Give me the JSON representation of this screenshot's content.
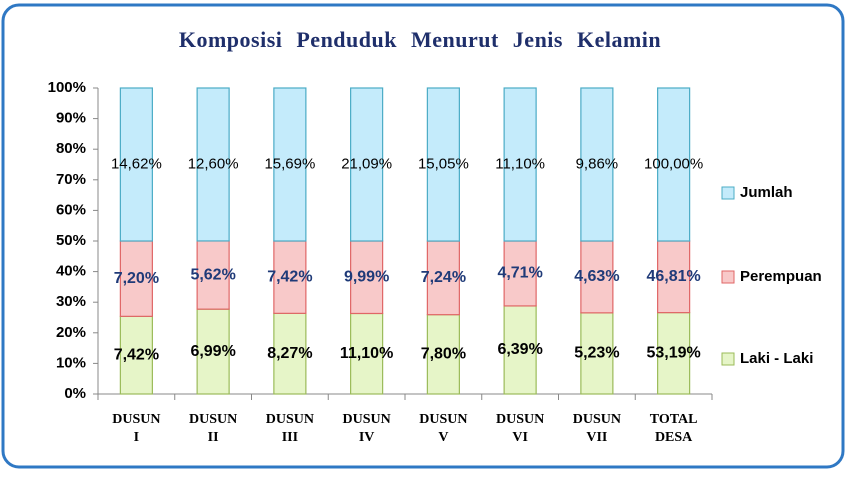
{
  "chart_data": {
    "type": "bar",
    "stacked": "percent",
    "title": "Komposisi Penduduk Menurut Jenis Kelamin",
    "categories": [
      "DUSUN I",
      "DUSUN II",
      "DUSUN III",
      "DUSUN IV",
      "DUSUN V",
      "DUSUN VI",
      "DUSUN VII",
      "TOTAL DESA"
    ],
    "series": [
      {
        "name": "Laki - Laki",
        "color": "#e6f5c8",
        "values": [
          7.42,
          6.99,
          8.27,
          11.1,
          7.8,
          6.39,
          5.23,
          53.19
        ],
        "value_labels": [
          "7,42%",
          "6,99%",
          "8,27%",
          "11,10%",
          "7,80%",
          "6,39%",
          "5,23%",
          "53,19%"
        ]
      },
      {
        "name": "Perempuan",
        "color": "#f8c9c9",
        "values": [
          7.2,
          5.62,
          7.42,
          9.99,
          7.24,
          4.71,
          4.63,
          46.81
        ],
        "value_labels": [
          "7,20%",
          "5,62%",
          "7,42%",
          "9,99%",
          "7,24%",
          "4,71%",
          "4,63%",
          "46,81%"
        ]
      },
      {
        "name": "Jumlah",
        "color": "#c4ebfb",
        "values": [
          14.62,
          12.6,
          15.69,
          21.09,
          15.05,
          11.1,
          9.86,
          100.0
        ],
        "value_labels": [
          "14,62%",
          "12,60%",
          "15,69%",
          "21,09%",
          "15,05%",
          "11,10%",
          "9,86%",
          "100,00%"
        ]
      }
    ],
    "ylim": [
      0,
      100
    ],
    "yticks": [
      {
        "value": 0,
        "label": "0%"
      },
      {
        "value": 10,
        "label": "10%"
      },
      {
        "value": 20,
        "label": "20%"
      },
      {
        "value": 30,
        "label": "30%"
      },
      {
        "value": 40,
        "label": "40%"
      },
      {
        "value": 50,
        "label": "50%"
      },
      {
        "value": 60,
        "label": "60%"
      },
      {
        "value": 70,
        "label": "70%"
      },
      {
        "value": 80,
        "label": "80%"
      },
      {
        "value": 90,
        "label": "90%"
      },
      {
        "value": 100,
        "label": "100%"
      }
    ],
    "legend": "right"
  }
}
